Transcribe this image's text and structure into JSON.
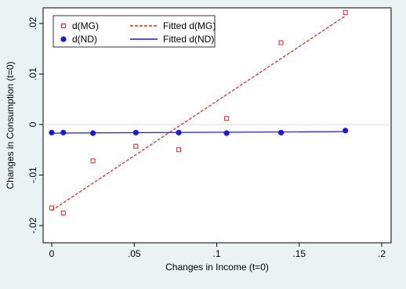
{
  "chart_data": {
    "type": "scatter",
    "title": "",
    "xlabel": "Changes in Income (t=0)",
    "ylabel": "Changes in Consumption (t=0)",
    "xlim": [
      0,
      0.2
    ],
    "ylim": [
      -0.02,
      0.02
    ],
    "x_ticks": [
      0,
      0.05,
      0.1,
      0.15,
      0.2
    ],
    "x_tick_labels": [
      "0",
      ".05",
      ".1",
      ".15",
      ".2"
    ],
    "y_ticks": [
      -0.02,
      -0.01,
      0,
      0.01,
      0.02
    ],
    "y_tick_labels": [
      "-.02",
      "-.01",
      "0",
      ".01",
      ".02"
    ],
    "grid": false,
    "legend_position": "top-left",
    "series": [
      {
        "name": "d(MG)",
        "kind": "scatter",
        "marker": "hollow-square",
        "color": "#e8211d",
        "x": [
          0,
          0.007,
          0.025,
          0.051,
          0.077,
          0.106,
          0.139,
          0.178
        ],
        "y": [
          -0.0165,
          -0.0175,
          -0.0072,
          -0.0043,
          -0.005,
          0.0012,
          0.0162,
          0.0222
        ]
      },
      {
        "name": "Fitted d(MG)",
        "kind": "line",
        "dash": "dashed",
        "color": "#e8211d",
        "x": [
          0,
          0.178
        ],
        "y": [
          -0.017,
          0.0215
        ]
      },
      {
        "name": "d(ND)",
        "kind": "scatter",
        "marker": "filled-circle",
        "color": "#1a1ad2",
        "x": [
          0,
          0.007,
          0.025,
          0.051,
          0.077,
          0.106,
          0.139,
          0.178
        ],
        "y": [
          -0.0016,
          -0.0016,
          -0.0017,
          -0.0016,
          -0.0016,
          -0.0017,
          -0.0016,
          -0.0012
        ]
      },
      {
        "name": "Fitted d(ND)",
        "kind": "line",
        "dash": "solid",
        "color": "#1a1ad2",
        "x": [
          0,
          0.178
        ],
        "y": [
          -0.0017,
          -0.0014
        ]
      }
    ],
    "legend": {
      "items": [
        {
          "label": "d(MG)",
          "series": 0
        },
        {
          "label": "Fitted d(MG)",
          "series": 1
        },
        {
          "label": "d(ND)",
          "series": 2
        },
        {
          "label": "Fitted d(ND)",
          "series": 3
        }
      ]
    }
  }
}
